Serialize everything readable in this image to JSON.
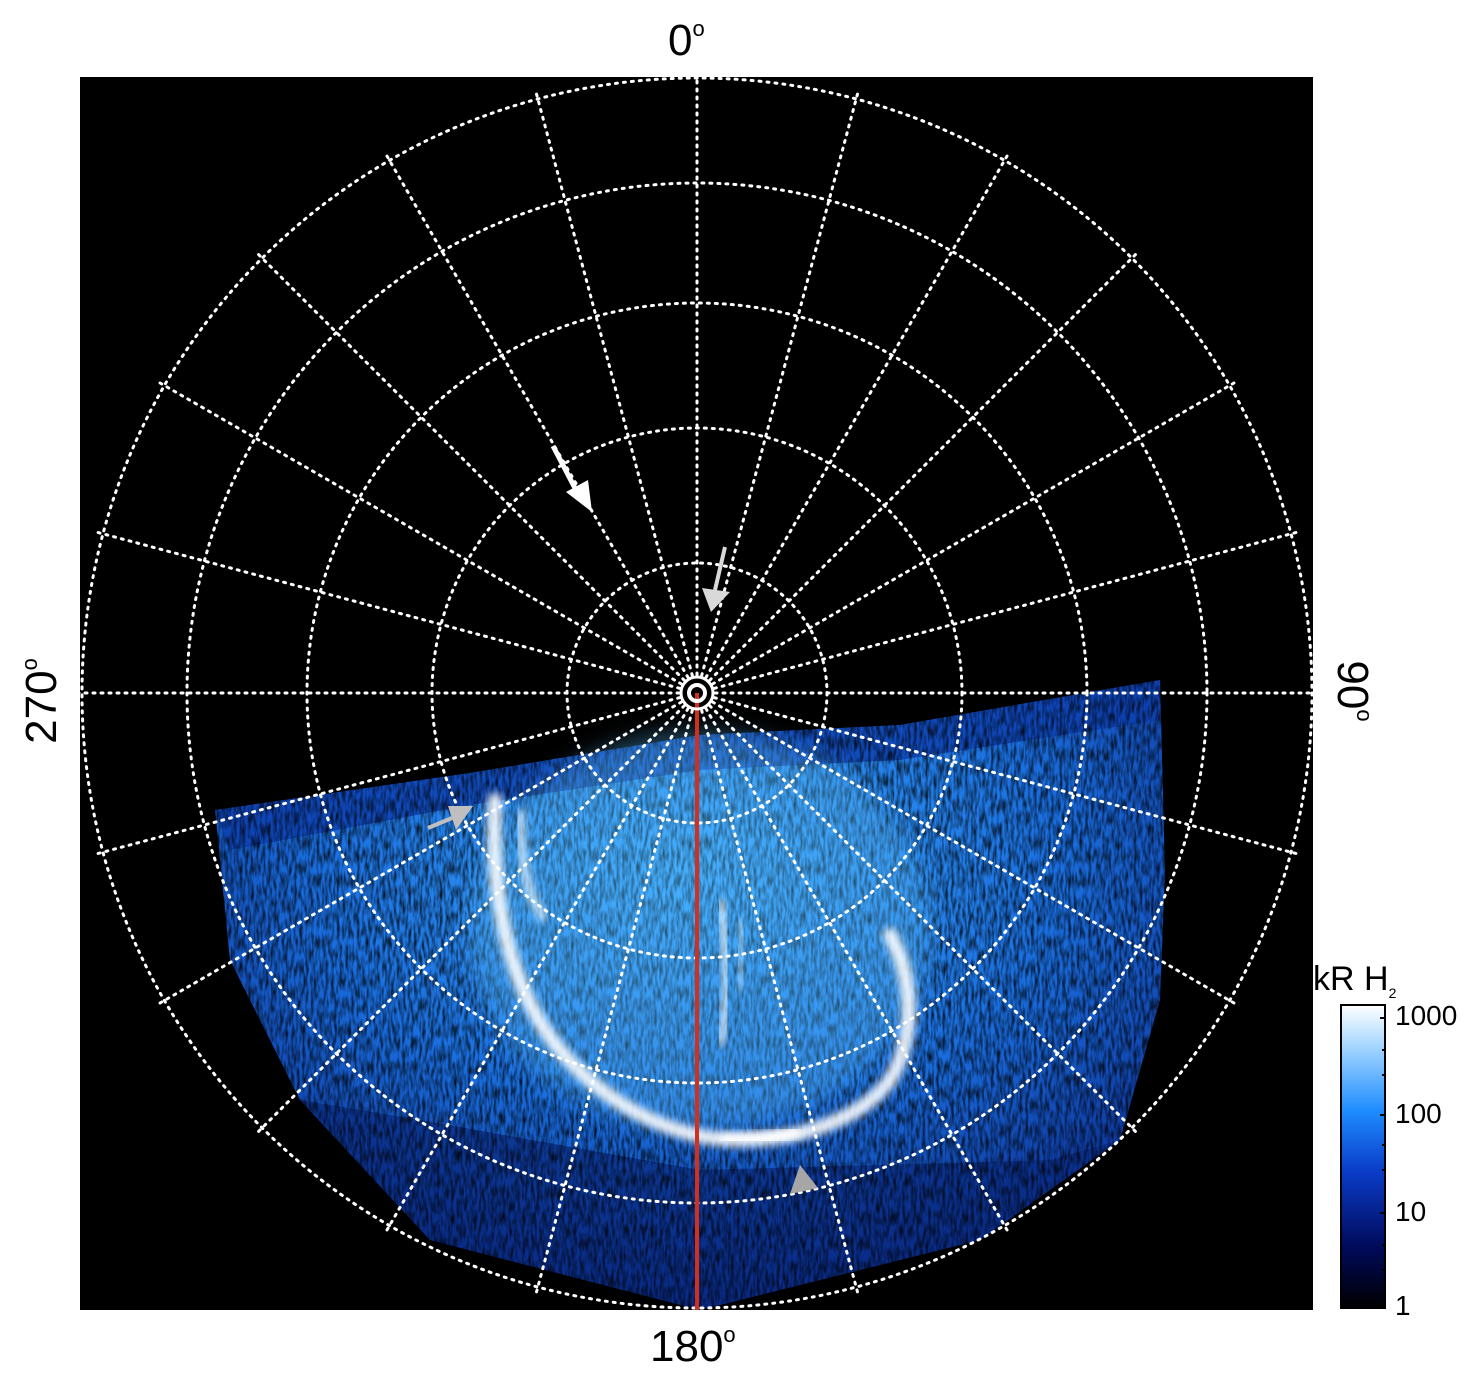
{
  "axis_labels": {
    "top": "0",
    "right": "90",
    "bottom": "180",
    "left": "270",
    "degree_symbol": "o"
  },
  "colorbar": {
    "unit": "kR H",
    "unit_subscript": "2",
    "tick_labels": [
      "1000",
      "100",
      "10",
      "1"
    ],
    "scale": "log",
    "colors": [
      "#000000",
      "#000a5a",
      "#0a3cc8",
      "#1e8cff",
      "#9cd2ff",
      "#ffffff"
    ]
  },
  "colors": {
    "background_plot": "#000000",
    "grid": "#ffffff",
    "meridian_line": "#d2301e",
    "arrow_white": "#ffffff",
    "arrow_grey": "#bfbfbf"
  }
}
